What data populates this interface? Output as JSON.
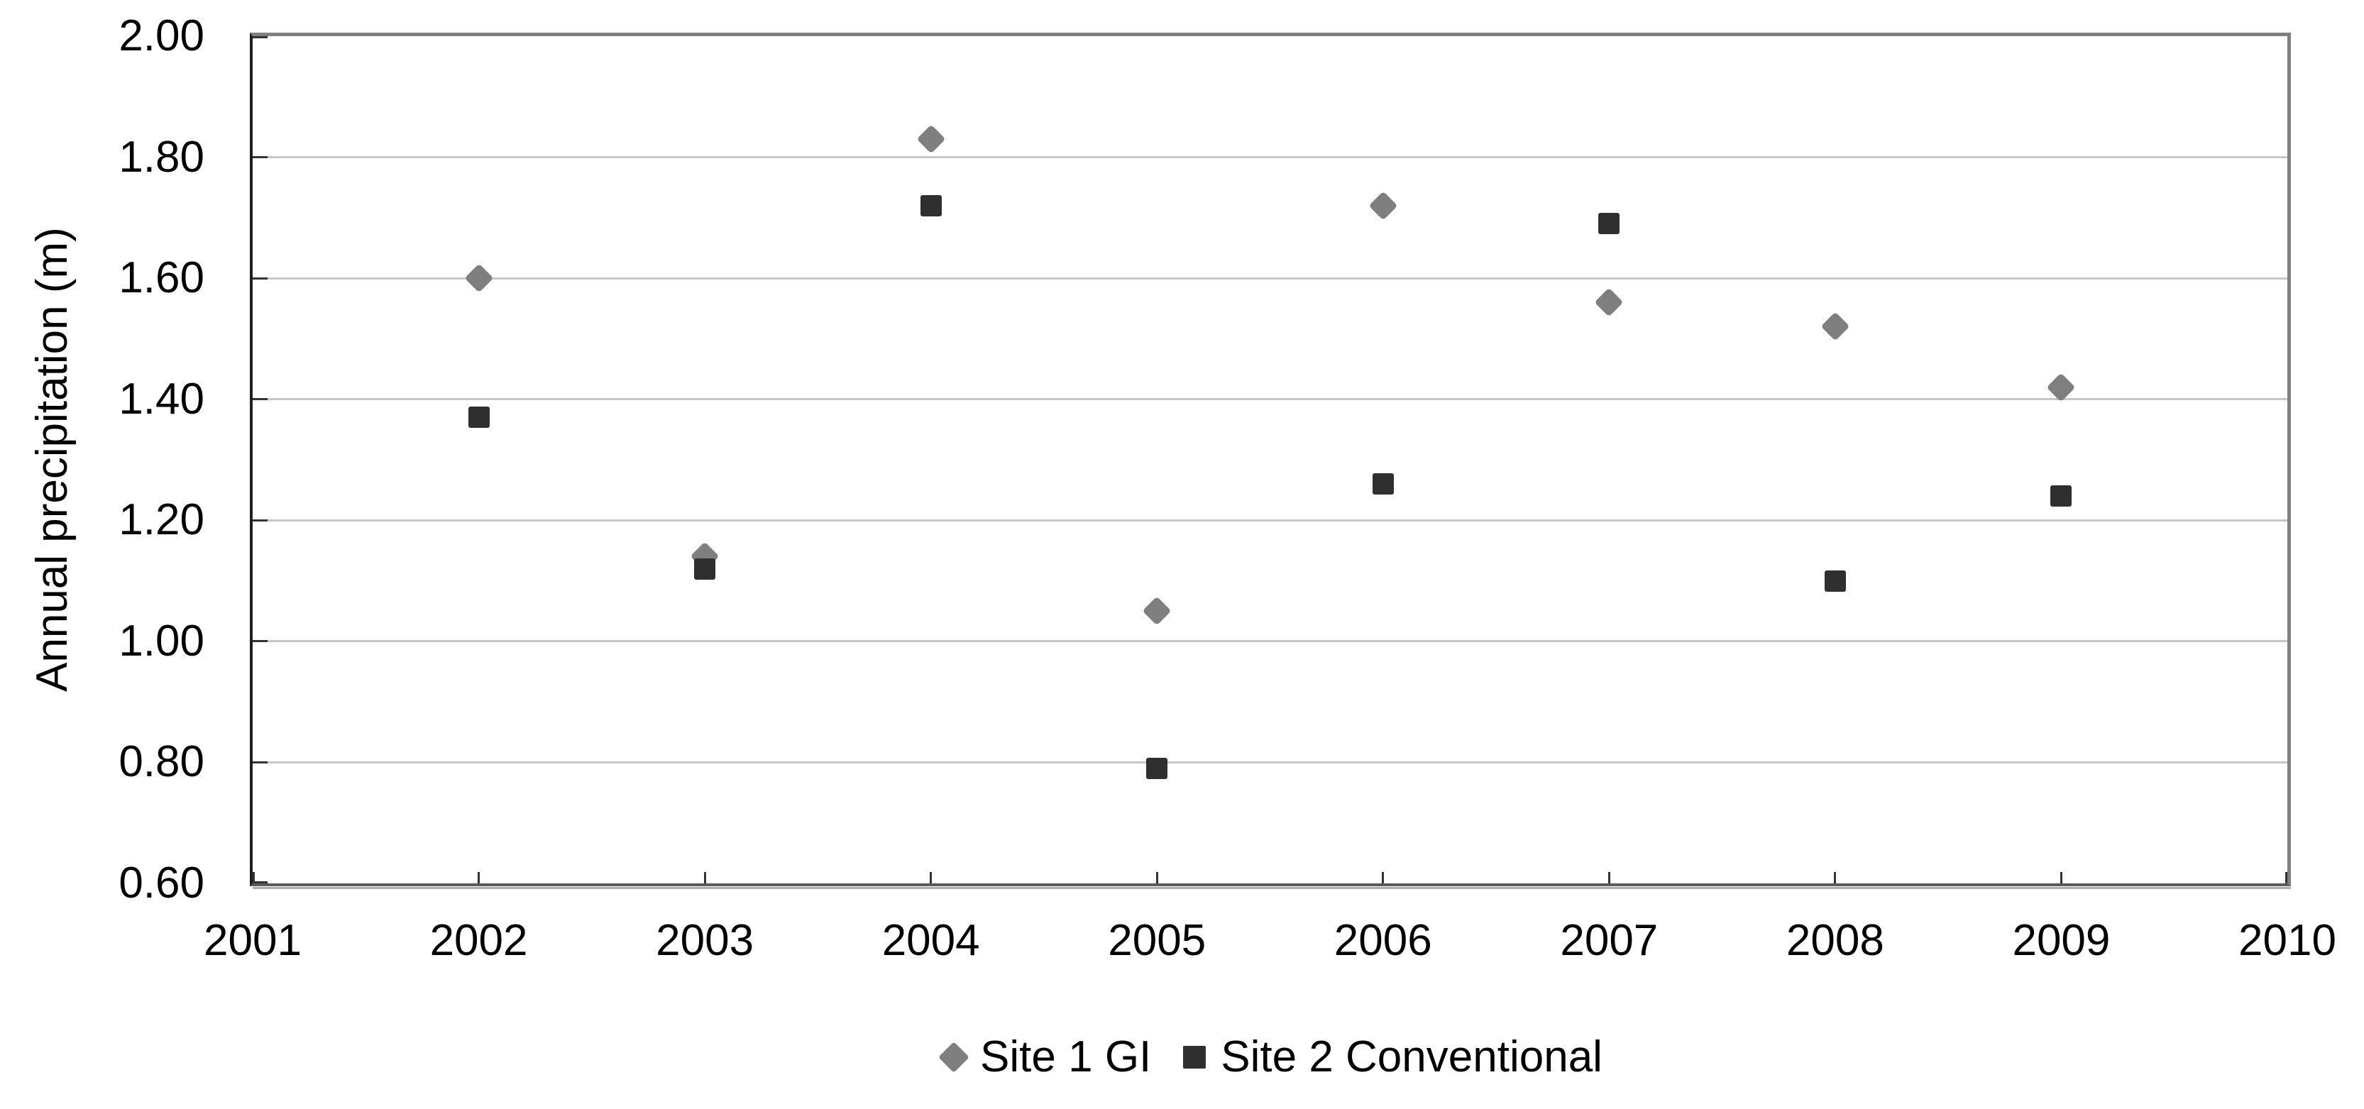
{
  "chart_data": {
    "type": "scatter",
    "title": "",
    "xlabel": "",
    "ylabel": "Annual precipitation (m)",
    "xlim": [
      2001,
      2010
    ],
    "ylim": [
      0.6,
      2.0
    ],
    "x_ticks": [
      2001,
      2002,
      2003,
      2004,
      2005,
      2006,
      2007,
      2008,
      2009,
      2010
    ],
    "y_ticks": [
      0.6,
      0.8,
      1.0,
      1.2,
      1.4,
      1.6,
      1.8,
      2.0
    ],
    "grid": "horizontal",
    "legend_position": "bottom-center",
    "x": [
      2002,
      2003,
      2004,
      2005,
      2006,
      2007,
      2008,
      2009
    ],
    "series": [
      {
        "name": "Site 1 GI",
        "marker": "diamond",
        "color": "#7f7f7f",
        "values": [
          1.6,
          1.14,
          1.83,
          1.05,
          1.72,
          1.56,
          1.52,
          1.42
        ]
      },
      {
        "name": "Site 2 Conventional",
        "marker": "square",
        "color": "#2f2f2f",
        "values": [
          1.37,
          1.12,
          1.72,
          0.79,
          1.26,
          1.69,
          1.1,
          1.24
        ]
      }
    ],
    "colors": {
      "gridline": "#c6c6c6",
      "plot_border": "#7f7f7f",
      "left_axis": "#1f1f1f",
      "bottom_axis": "#595959",
      "tick": "#333333",
      "text": "#000000"
    }
  }
}
